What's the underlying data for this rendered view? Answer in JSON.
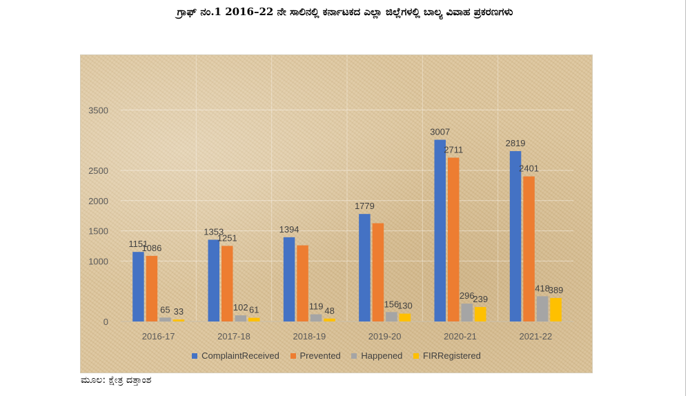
{
  "title": "ಗ್ರಾಫ್ ನಂ.1 2016–22 ನೇ ಸಾಲಿನಲ್ಲಿ ಕರ್ನಾಟಕದ ಎಲ್ಲಾ ಜಿಲ್ಲೆಗಳಲ್ಲಿ ಬಾಲ್ಯ ವಿವಾಹ ಪ್ರಕರಣಗಳು",
  "source": "ಮೂಲ: ಕ್ಷೇತ್ರ ದತ್ತಾಂಶ",
  "chart_data": {
    "type": "bar",
    "categories": [
      "2016-17",
      "2017-18",
      "2018-19",
      "2019-20",
      "2020-21",
      "2021-22"
    ],
    "series": [
      {
        "name": "ComplaintReceived",
        "color": "#4472C4",
        "values": [
          1151,
          1353,
          1394,
          1779,
          3007,
          2819
        ]
      },
      {
        "name": "Prevented",
        "color": "#ED7D31",
        "values": [
          1086,
          1251,
          1260,
          1626,
          2711,
          2401
        ]
      },
      {
        "name": "Happened",
        "color": "#A5A5A5",
        "values": [
          65,
          102,
          119,
          156,
          296,
          418
        ]
      },
      {
        "name": "FIRRegistered",
        "color": "#FFC000",
        "values": [
          33,
          61,
          48,
          130,
          239,
          389
        ]
      }
    ],
    "data_labels": [
      [
        "1151",
        "1086",
        "65",
        "33"
      ],
      [
        "1353",
        "1251",
        "102",
        "61"
      ],
      [
        "1394",
        "",
        "119",
        "48"
      ],
      [
        "1779",
        "",
        "156",
        "130"
      ],
      [
        "3007",
        "2711",
        "296",
        "239"
      ],
      [
        "2819",
        "2401",
        "418",
        "389"
      ]
    ],
    "y_ticks": [
      "0",
      "1000",
      "1500",
      "2000",
      "2500",
      "3500"
    ],
    "ylim": [
      0,
      3500
    ],
    "grid": true,
    "legend": "bottom"
  }
}
